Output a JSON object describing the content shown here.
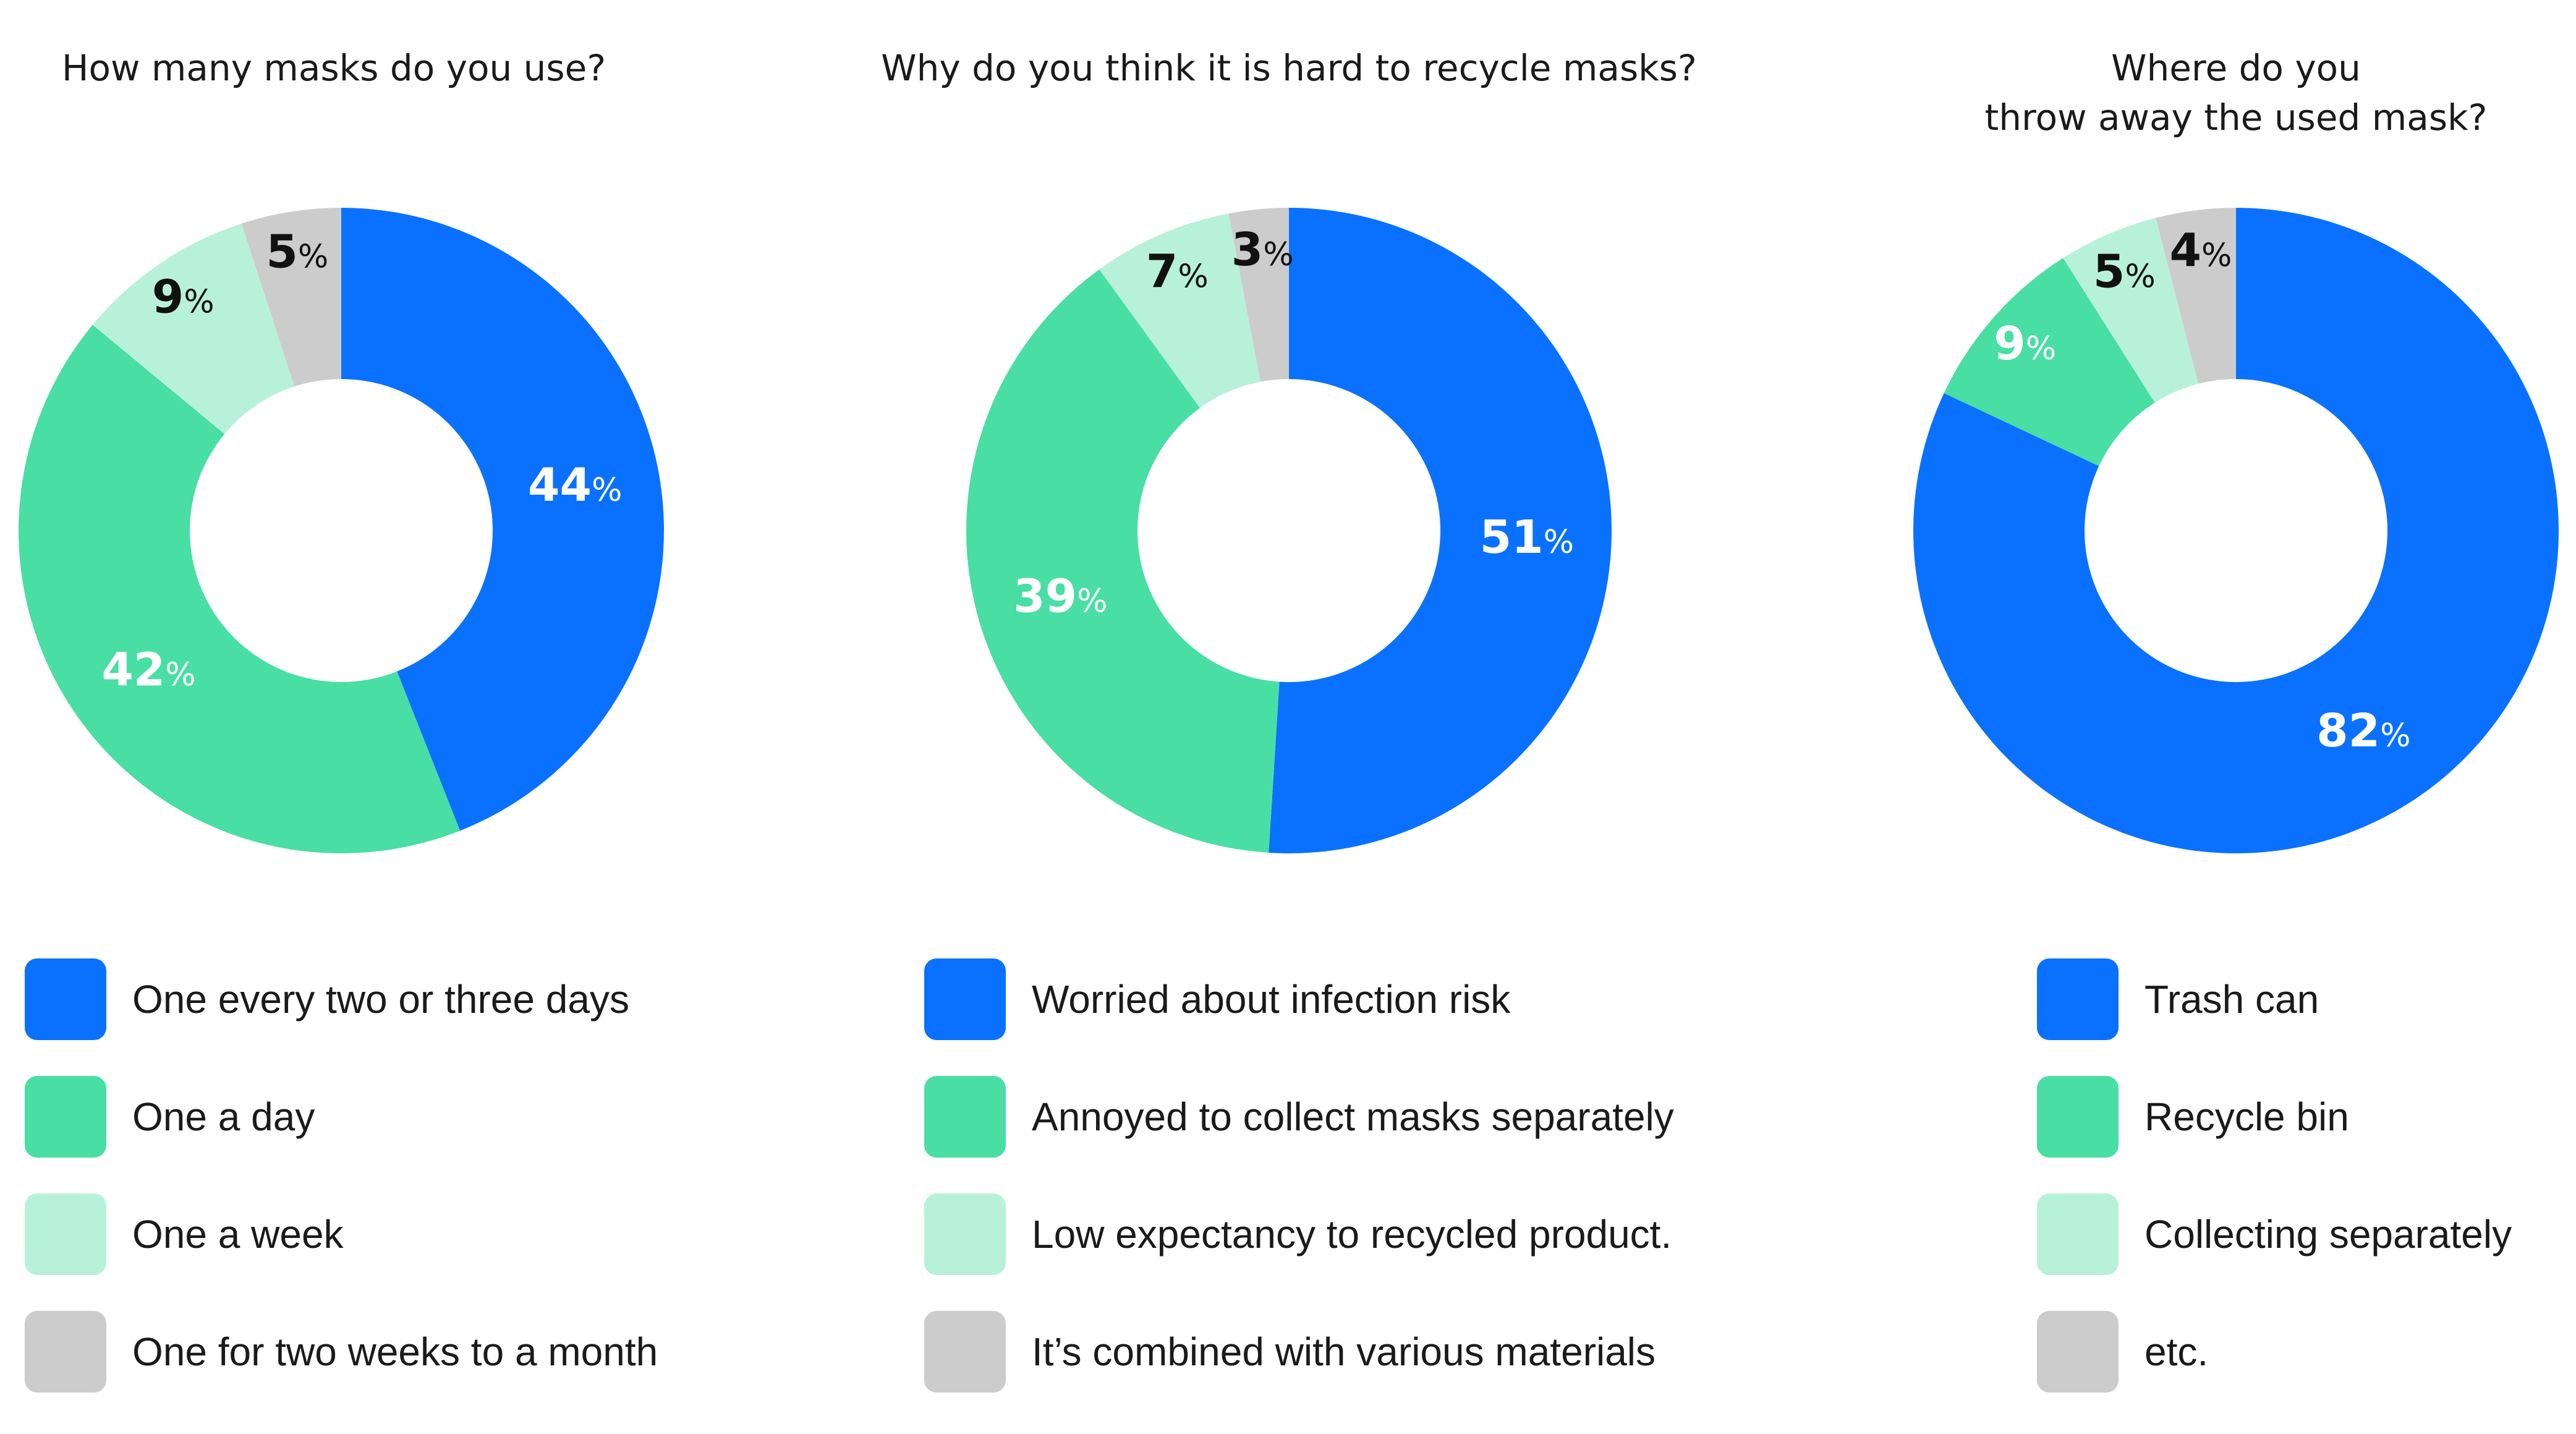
{
  "colors": {
    "blue": "#0a71ff",
    "green": "#48dea4",
    "light_green": "#b8f1da",
    "gray": "#cccccc",
    "label_light": "#ffffff",
    "label_dark": "#111111"
  },
  "percent_sign": "%",
  "chart_data": [
    {
      "type": "pie",
      "donut": true,
      "title_lines": [
        "How many masks do you use?"
      ],
      "categories": [
        "One every two or three days",
        "One a day",
        "One a week",
        "One for two weeks to a month"
      ],
      "values": [
        44,
        42,
        9,
        5
      ],
      "colors": [
        "#0a71ff",
        "#48dea4",
        "#b8f1da",
        "#cccccc"
      ],
      "legend_position": "bottom"
    },
    {
      "type": "pie",
      "donut": true,
      "title_lines": [
        "Why do you think it is hard to recycle masks?"
      ],
      "categories": [
        "Worried about infection risk",
        "Annoyed to collect masks separately",
        "Low expectancy to recycled product.",
        "It’s combined with various materials"
      ],
      "values": [
        51,
        39,
        7,
        3
      ],
      "colors": [
        "#0a71ff",
        "#48dea4",
        "#b8f1da",
        "#cccccc"
      ],
      "legend_position": "bottom"
    },
    {
      "type": "pie",
      "donut": true,
      "title_lines": [
        "Where do you",
        "throw away the used mask?"
      ],
      "categories": [
        "Trash can",
        "Recycle bin",
        "Collecting separately",
        "etc."
      ],
      "values": [
        82,
        9,
        5,
        4
      ],
      "colors": [
        "#0a71ff",
        "#48dea4",
        "#b8f1da",
        "#cccccc"
      ],
      "legend_position": "bottom"
    }
  ]
}
